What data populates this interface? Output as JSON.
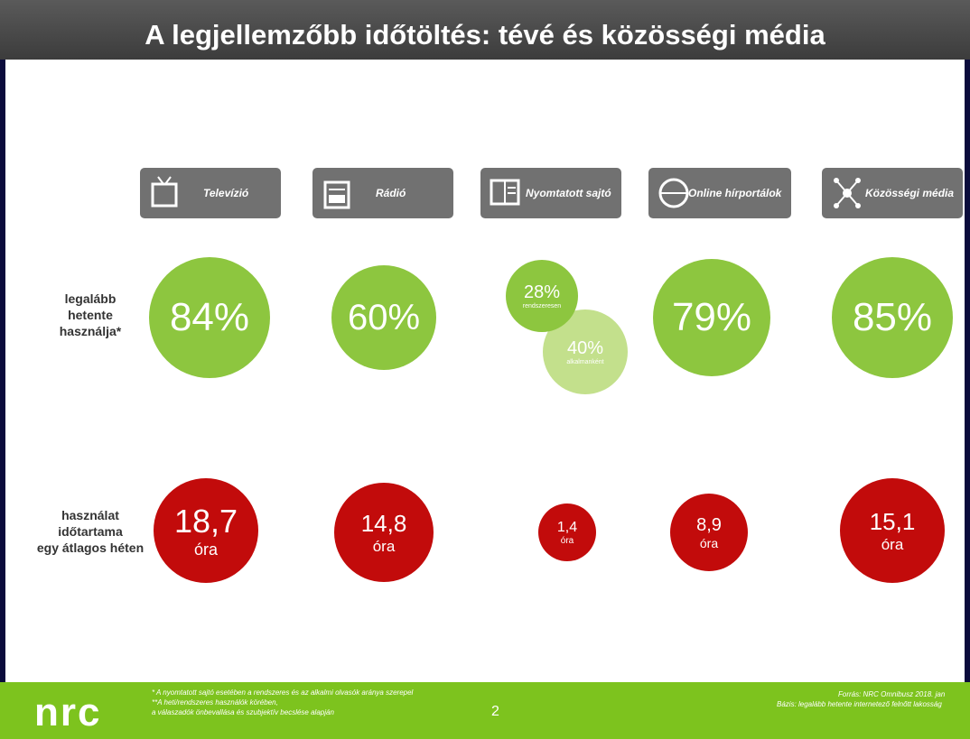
{
  "header": {
    "title": "A legjellemzőbb időtöltés: tévé és közösségi média"
  },
  "categories": [
    "Televízió",
    "Rádió",
    "Nyomtatott sajtó",
    "Online hírportálok",
    "Közösségi média"
  ],
  "rows": [
    {
      "label": [
        "legalább",
        "hetente",
        "használja*"
      ],
      "cells": [
        {
          "value": "84%"
        },
        {
          "value": "60%"
        },
        {
          "value": "28%",
          "note": "rendszeresen",
          "value2": "40%",
          "note2": "alkalmanként"
        },
        {
          "value": "79%"
        },
        {
          "value": "85%"
        }
      ]
    },
    {
      "label": [
        "használat",
        "időtartama",
        "egy átlagos héten"
      ],
      "cells": [
        {
          "value": "18,7",
          "unit": "óra"
        },
        {
          "value": "14,8",
          "unit": "óra"
        },
        {
          "value": "1,4",
          "unit": "óra"
        },
        {
          "value": "8,9",
          "unit": "óra"
        },
        {
          "value": "15,1",
          "unit": "óra"
        }
      ]
    }
  ],
  "footer": {
    "logo": "nrc",
    "notes": [
      "* A nyomtatott sajtó esetében a rendszeres és az alkalmi olvasók aránya szerepel",
      "**A heti/rendszeres használók körében,",
      "a válaszadók önbevallása és szubjektív becslése alapján"
    ],
    "page": "2",
    "source": [
      "Forrás: NRC Omnibusz 2018. jan",
      "Bázis: legalább hetente internetező felnőtt lakosság"
    ]
  }
}
